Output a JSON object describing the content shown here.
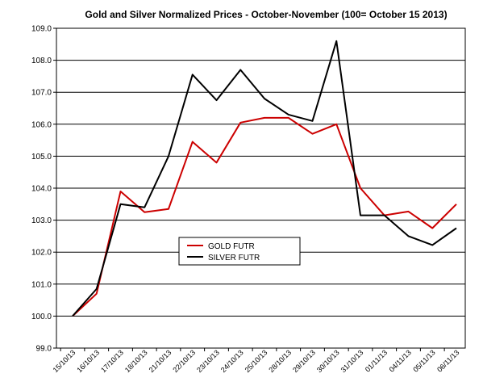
{
  "chart_data": {
    "type": "line",
    "title": "Gold and Silver Normalized Prices - October-November  (100= October 15 2013)",
    "xlabel": "",
    "ylabel": "",
    "ylim": [
      99.0,
      109.0
    ],
    "yticks": [
      "99.0",
      "100.0",
      "101.0",
      "102.0",
      "103.0",
      "104.0",
      "105.0",
      "106.0",
      "107.0",
      "108.0",
      "109.0"
    ],
    "categories": [
      "15/10/13",
      "16/10/13",
      "17/10/13",
      "18/10/13",
      "21/10/13",
      "22/10/13",
      "23/10/13",
      "24/10/13",
      "25/10/13",
      "28/10/13",
      "29/10/13",
      "30/10/13",
      "31/10/13",
      "01/11/13",
      "04/11/13",
      "05/11/13",
      "06/11/13"
    ],
    "grid": true,
    "legend_position": "lower-center",
    "series": [
      {
        "name": "GOLD  FUTR",
        "color": "#cc0000",
        "values": [
          100.0,
          100.7,
          103.9,
          103.25,
          103.35,
          105.45,
          104.8,
          106.05,
          106.2,
          106.2,
          105.7,
          106.0,
          104.0,
          103.15,
          103.27,
          102.75,
          103.5
        ]
      },
      {
        "name": "SILVER  FUTR",
        "color": "#000000",
        "values": [
          100.0,
          100.85,
          103.5,
          103.4,
          105.0,
          107.55,
          106.75,
          107.7,
          106.8,
          106.3,
          106.1,
          108.6,
          103.15,
          103.15,
          102.5,
          102.22,
          102.75
        ]
      }
    ]
  }
}
